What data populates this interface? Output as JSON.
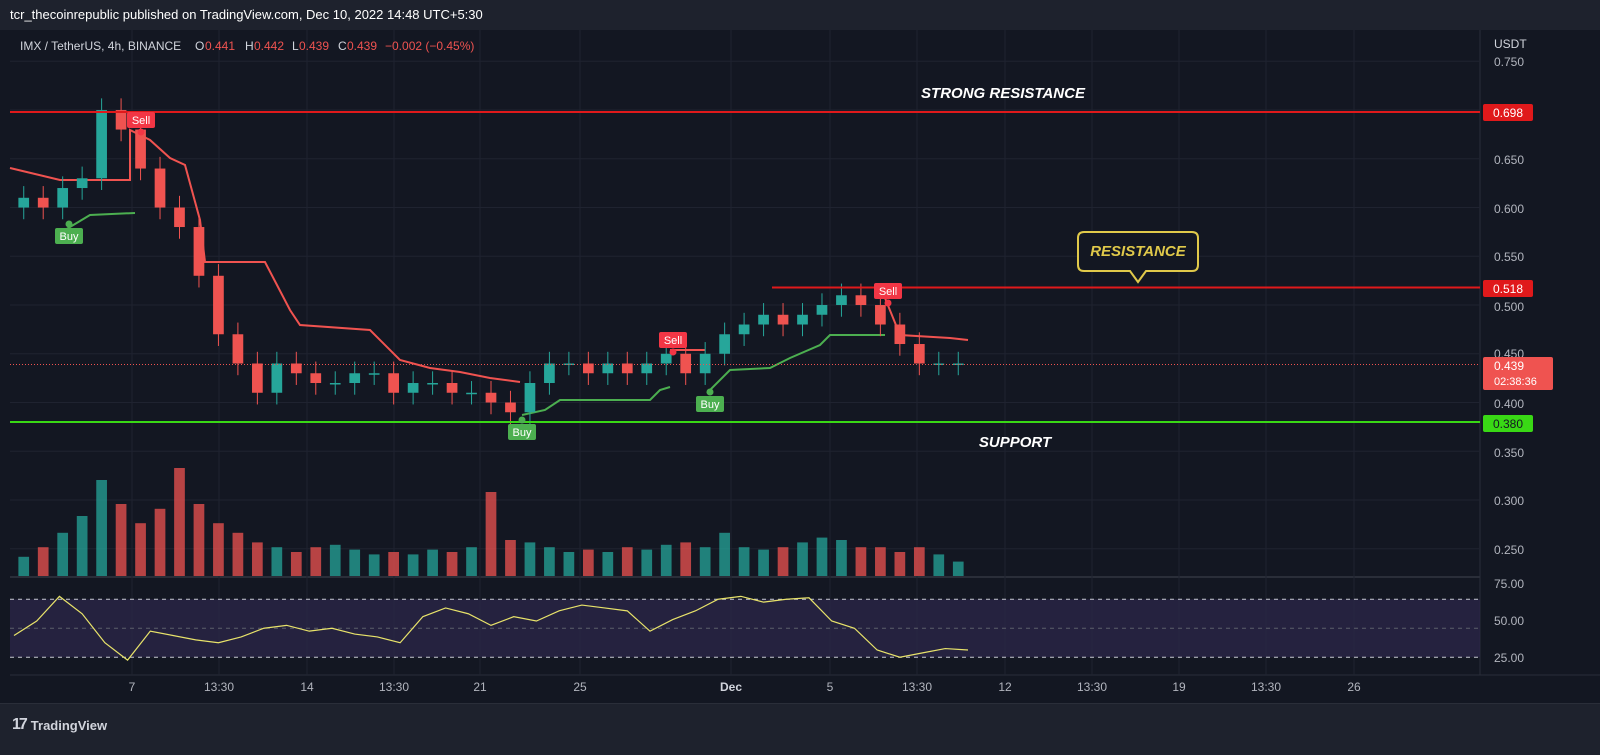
{
  "header": {
    "published_text": "tcr_thecoinrepublic published on TradingView.com, Dec 10, 2022 14:48 UTC+5:30"
  },
  "legend": {
    "symbol": "IMX / TetherUS, 4h, BINANCE",
    "o_label": "O",
    "o_val": "0.441",
    "h_label": "H",
    "h_val": "0.442",
    "l_label": "L",
    "l_val": "0.439",
    "c_label": "C",
    "c_val": "0.439",
    "change": "−0.002 (−0.45%)"
  },
  "axis": {
    "currency": "USDT",
    "price_ticks": [
      "0.750",
      "0.650",
      "0.600",
      "0.550",
      "0.500",
      "0.450",
      "0.400",
      "0.350",
      "0.300",
      "0.250"
    ],
    "rsi_ticks": [
      "75.00",
      "50.00",
      "25.00"
    ],
    "x_ticks": [
      "7",
      "13:30",
      "14",
      "13:30",
      "21",
      "25",
      "Dec",
      "5",
      "13:30",
      "12",
      "13:30",
      "19",
      "13:30",
      "26"
    ]
  },
  "labels": {
    "strong_resistance_price": "0.698",
    "resistance_price": "0.518",
    "current_price": "0.439",
    "countdown": "02:38:36",
    "support_price": "0.380"
  },
  "annotations": {
    "strong_resistance": "STRONG RESISTANCE",
    "resistance": "RESISTANCE",
    "support": "SUPPORT"
  },
  "signals": [
    {
      "type": "Buy",
      "label": "Buy"
    },
    {
      "type": "Sell",
      "label": "Sell"
    },
    {
      "type": "Sell",
      "label": "Sell"
    },
    {
      "type": "Buy",
      "label": "Buy"
    },
    {
      "type": "Buy",
      "label": "Buy"
    },
    {
      "type": "Sell",
      "label": "Sell"
    }
  ],
  "footer": {
    "brand": "TradingView"
  },
  "colors": {
    "background": "#131722",
    "up": "#26a69a",
    "down": "#ef5350",
    "resistance_line": "#e0191b",
    "support_line": "#39d815",
    "supertrend_up": "#4caf50",
    "supertrend_down": "#f05350",
    "rsi_line": "#e8e36a",
    "annotation_box": "#e0c94a"
  },
  "chart_data": {
    "type": "candlestick",
    "symbol": "IMX / TetherUS",
    "timeframe": "4h",
    "exchange": "BINANCE",
    "ylim": [
      0.225,
      0.76
    ],
    "levels": [
      {
        "name": "STRONG RESISTANCE",
        "value": 0.698
      },
      {
        "name": "RESISTANCE",
        "value": 0.518
      },
      {
        "name": "SUPPORT",
        "value": 0.38
      }
    ],
    "last_price": 0.439,
    "close_series": [
      0.61,
      0.6,
      0.62,
      0.63,
      0.7,
      0.68,
      0.64,
      0.6,
      0.58,
      0.53,
      0.47,
      0.44,
      0.41,
      0.44,
      0.43,
      0.42,
      0.42,
      0.43,
      0.43,
      0.41,
      0.42,
      0.42,
      0.41,
      0.41,
      0.4,
      0.39,
      0.42,
      0.44,
      0.44,
      0.43,
      0.44,
      0.43,
      0.44,
      0.45,
      0.43,
      0.45,
      0.47,
      0.48,
      0.49,
      0.48,
      0.49,
      0.5,
      0.51,
      0.5,
      0.48,
      0.46,
      0.44,
      0.44,
      0.44
    ],
    "volume_series": [
      0.08,
      0.12,
      0.18,
      0.25,
      0.4,
      0.3,
      0.22,
      0.28,
      0.45,
      0.3,
      0.22,
      0.18,
      0.14,
      0.12,
      0.1,
      0.12,
      0.13,
      0.11,
      0.09,
      0.1,
      0.09,
      0.11,
      0.1,
      0.12,
      0.35,
      0.15,
      0.14,
      0.12,
      0.1,
      0.11,
      0.1,
      0.12,
      0.11,
      0.13,
      0.14,
      0.12,
      0.18,
      0.12,
      0.11,
      0.12,
      0.14,
      0.16,
      0.15,
      0.12,
      0.12,
      0.1,
      0.12,
      0.09,
      0.06
    ],
    "rsi_series": [
      45,
      55,
      72,
      60,
      40,
      28,
      48,
      45,
      42,
      40,
      44,
      50,
      52,
      48,
      50,
      46,
      44,
      40,
      58,
      64,
      60,
      52,
      58,
      55,
      62,
      66,
      64,
      62,
      48,
      56,
      62,
      70,
      72,
      68,
      70,
      71,
      55,
      50,
      35,
      30,
      33,
      36,
      35
    ],
    "rsi_bands": [
      70,
      30
    ],
    "signals": [
      {
        "label": "Buy"
      },
      {
        "label": "Sell"
      },
      {
        "label": "Sell"
      },
      {
        "label": "Buy"
      },
      {
        "label": "Buy"
      },
      {
        "label": "Sell"
      }
    ]
  }
}
